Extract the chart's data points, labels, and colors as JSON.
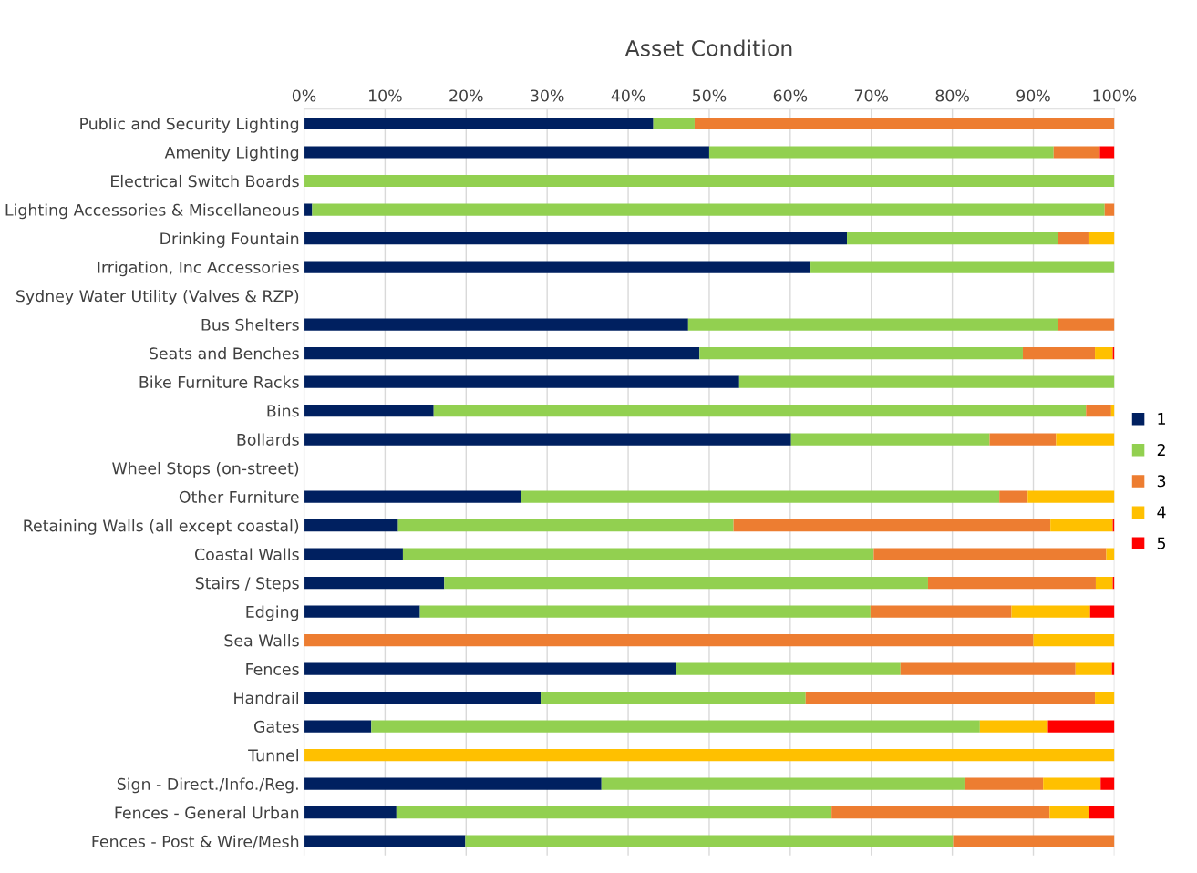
{
  "chart_data": {
    "type": "bar",
    "title": "Asset Condition",
    "orientation": "horizontal",
    "stacked": true,
    "categories": [
      "Public and Security Lighting",
      "Amenity Lighting",
      "Electrical Switch Boards",
      "Lighting Accessories & Miscellaneous",
      "Drinking Fountain",
      "Irrigation, Inc Accessories",
      "Sydney Water Utility (Valves & RZP)",
      "Bus Shelters",
      "Seats and Benches",
      "Bike Furniture Racks",
      "Bins",
      "Bollards",
      "Wheel Stops (on-street)",
      "Other Furniture",
      "Retaining Walls (all except coastal)",
      "Coastal Walls",
      "Stairs / Steps",
      "Edging",
      "Sea Walls",
      "Fences",
      "Handrail",
      "Gates",
      "Tunnel",
      "Sign - Direct./Info./Reg.",
      "Fences - General Urban",
      "Fences - Post & Wire/Mesh"
    ],
    "series": [
      {
        "name": "1",
        "color": "#002060",
        "values": [
          43.1,
          50,
          0,
          1,
          67,
          62.5,
          null,
          47.4,
          48.8,
          53.7,
          16,
          60.1,
          null,
          26.8,
          11.6,
          12.2,
          17.3,
          14.3,
          0,
          45.9,
          29.2,
          8.3,
          0,
          36.7,
          11.4,
          19.9
        ]
      },
      {
        "name": "2",
        "color": "#92d050",
        "values": [
          5.1,
          42.5,
          100,
          97.8,
          26,
          37.5,
          null,
          45.6,
          39.9,
          46.3,
          80.5,
          24.5,
          null,
          59,
          41.4,
          58.1,
          59.7,
          55.6,
          0,
          27.7,
          32.7,
          75.1,
          0,
          44.8,
          53.7,
          60.2
        ]
      },
      {
        "name": "3",
        "color": "#ed7d31",
        "values": [
          51.8,
          5.7,
          0,
          1.2,
          3.8,
          0,
          null,
          7,
          8.9,
          0,
          3.1,
          8.2,
          null,
          3.5,
          39.1,
          28.7,
          20.7,
          17.4,
          90,
          21.6,
          35.7,
          0,
          0,
          9.7,
          26.9,
          19.9
        ]
      },
      {
        "name": "4",
        "color": "#ffc000",
        "values": [
          0,
          0,
          0,
          0,
          3.2,
          0,
          null,
          0,
          2.2,
          0,
          0.4,
          7.2,
          null,
          10.7,
          7.7,
          1,
          2.1,
          9.7,
          10,
          4.5,
          2.4,
          8.4,
          100,
          7.1,
          4.8,
          0
        ]
      },
      {
        "name": "5",
        "color": "#ff0000",
        "values": [
          0,
          1.8,
          0,
          0,
          0,
          0,
          null,
          0,
          0.2,
          0,
          0,
          0,
          null,
          0,
          0.2,
          0,
          0.2,
          3,
          0,
          0.3,
          0,
          8.2,
          0,
          1.7,
          3.2,
          0
        ]
      }
    ],
    "xlim": [
      0,
      100
    ],
    "xticks": [
      {
        "value": 0,
        "label": "0%"
      },
      {
        "value": 10,
        "label": "10%"
      },
      {
        "value": 20,
        "label": "20%"
      },
      {
        "value": 30,
        "label": "30%"
      },
      {
        "value": 40,
        "label": "40%"
      },
      {
        "value": 50,
        "label": "50%"
      },
      {
        "value": 60,
        "label": "60%"
      },
      {
        "value": 70,
        "label": "70%"
      },
      {
        "value": 80,
        "label": "80%"
      },
      {
        "value": 90,
        "label": "90%"
      },
      {
        "value": 100,
        "label": "100%"
      }
    ],
    "grid": "x",
    "legend": "right"
  }
}
